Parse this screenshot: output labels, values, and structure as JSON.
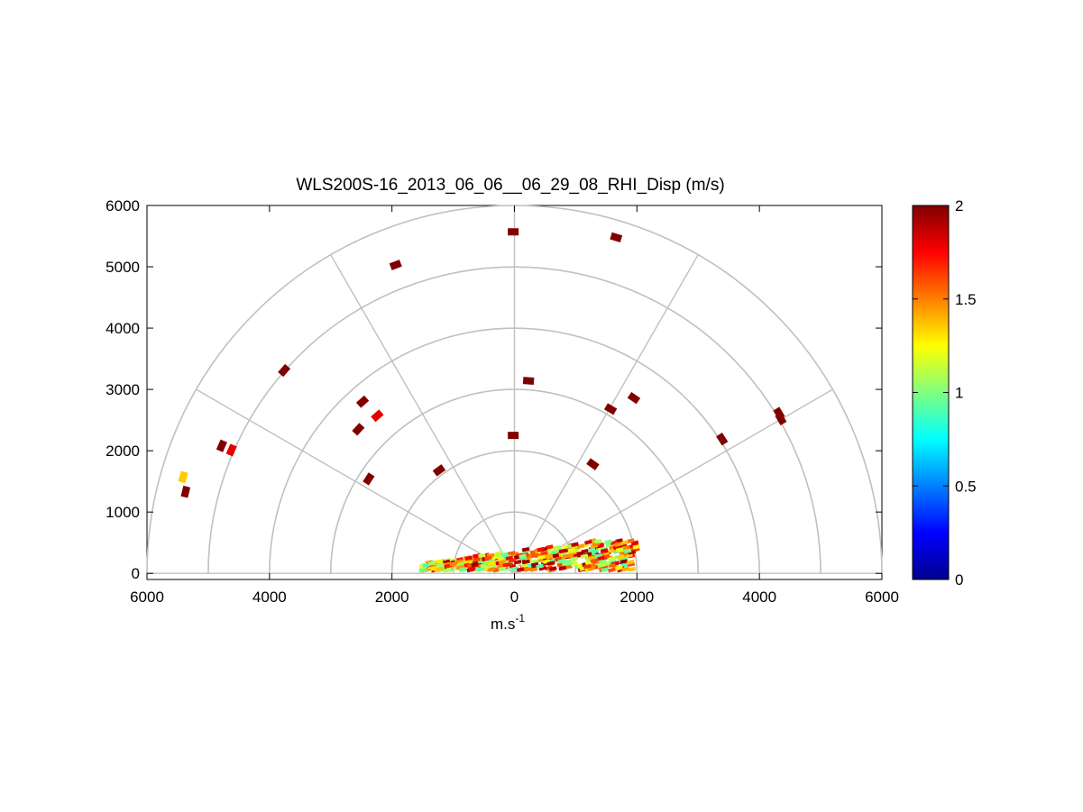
{
  "chart_data": {
    "type": "scatter",
    "title": "WLS200S-16_2013_06_06__06_29_08_RHI_Disp (m/s)",
    "xlabel": "m.s",
    "xlabel_superscript": "-1",
    "ylabel": "",
    "xlim": [
      -6000,
      6000
    ],
    "ylim": [
      -100,
      6000
    ],
    "xtick_labels": [
      "6000",
      "4000",
      "2000",
      "0",
      "2000",
      "4000",
      "6000"
    ],
    "ytick_labels": [
      "0",
      "1000",
      "2000",
      "3000",
      "4000",
      "5000",
      "6000"
    ],
    "grid": "polar",
    "polar_range_rings": [
      1000,
      2000,
      3000,
      4000,
      5000,
      6000
    ],
    "polar_spokes_deg": [
      0,
      30,
      60,
      90,
      120,
      150,
      180
    ],
    "colorbar": {
      "colormap": "jet",
      "range": [
        0,
        2
      ],
      "tick_labels": [
        "0",
        "0.5",
        "1",
        "1.5",
        "2"
      ],
      "placement": "right"
    },
    "points": [
      {
        "x": -5410,
        "y": 1570,
        "value": 1.35
      },
      {
        "x": -5370,
        "y": 1330,
        "value": 2.0
      },
      {
        "x": -4780,
        "y": 2080,
        "value": 2.0
      },
      {
        "x": -4620,
        "y": 2010,
        "value": 1.8
      },
      {
        "x": -3760,
        "y": 3310,
        "value": 2.0
      },
      {
        "x": -2550,
        "y": 2350,
        "value": 2.0
      },
      {
        "x": -2480,
        "y": 2800,
        "value": 2.0
      },
      {
        "x": -2240,
        "y": 2570,
        "value": 1.8
      },
      {
        "x": -2380,
        "y": 1540,
        "value": 2.0
      },
      {
        "x": -1940,
        "y": 5030,
        "value": 2.0
      },
      {
        "x": -1230,
        "y": 1680,
        "value": 2.0
      },
      {
        "x": -20,
        "y": 5570,
        "value": 2.0
      },
      {
        "x": -20,
        "y": 2250,
        "value": 2.0
      },
      {
        "x": 230,
        "y": 3140,
        "value": 2.0
      },
      {
        "x": 1660,
        "y": 5480,
        "value": 2.0
      },
      {
        "x": 1570,
        "y": 2680,
        "value": 2.0
      },
      {
        "x": 1950,
        "y": 2860,
        "value": 2.0
      },
      {
        "x": 1280,
        "y": 1780,
        "value": 2.0
      },
      {
        "x": 3390,
        "y": 2190,
        "value": 2.0
      },
      {
        "x": 4320,
        "y": 2610,
        "value": 2.0
      },
      {
        "x": 4350,
        "y": 2520,
        "value": 2.0
      }
    ],
    "near_field_clutter": {
      "x_range": [
        -1500,
        2000
      ],
      "y_range": [
        50,
        550
      ],
      "value_range": [
        0.9,
        2.0
      ]
    }
  }
}
